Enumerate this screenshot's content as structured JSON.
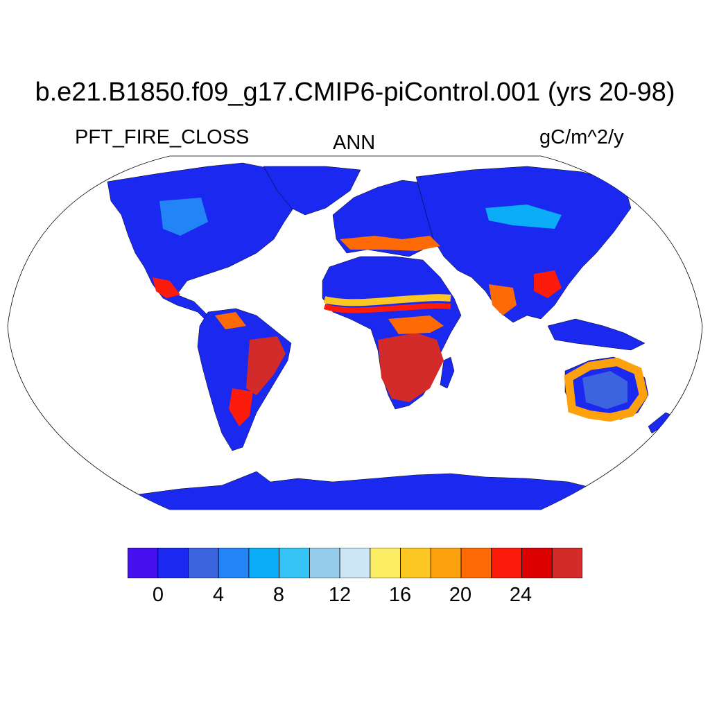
{
  "title": "b.e21.B1850.f09_g17.CMIP6-piControl.001 (yrs 20-98)",
  "variable": "PFT_FIRE_CLOSS",
  "season": "ANN",
  "units": "gC/m^2/y",
  "colorbar": {
    "colors": [
      "#4411ee",
      "#1a28f0",
      "#3c64e0",
      "#2385f5",
      "#0bacf8",
      "#36c3f6",
      "#96cdec",
      "#cce5f7",
      "#fded65",
      "#fdc723",
      "#fda10f",
      "#fd6a06",
      "#fd1c0c",
      "#dd0000",
      "#d32a2a"
    ],
    "tick_labels": [
      "0",
      "4",
      "8",
      "12",
      "16",
      "20",
      "24"
    ]
  },
  "map": {
    "projection": "robinson",
    "ocean_color": "#ffffff",
    "background_land_color": "#1a28f0"
  }
}
